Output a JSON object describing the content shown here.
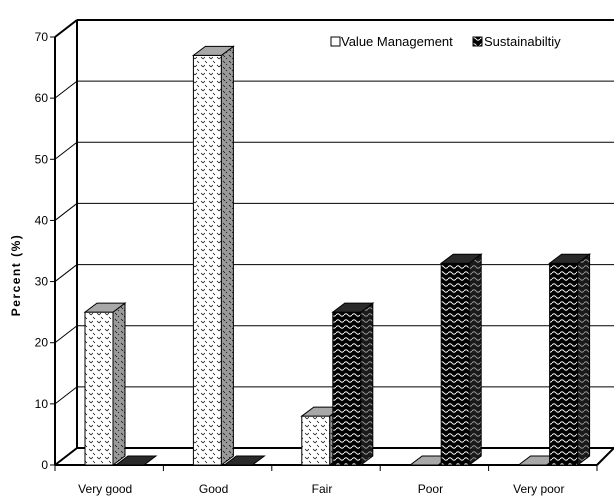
{
  "chart_data": {
    "type": "bar",
    "categories": [
      "Very good",
      "Good",
      "Fair",
      "Poor",
      "Very poor"
    ],
    "series": [
      {
        "name": "Value Management",
        "values": [
          25,
          67,
          8,
          0,
          0
        ]
      },
      {
        "name": "Sustainabiltiy",
        "values": [
          0,
          0,
          25,
          33,
          33
        ]
      }
    ],
    "ylabel": "Percent (%)",
    "ylim": [
      0,
      70
    ],
    "yticks": [
      0,
      10,
      20,
      30,
      40,
      50,
      60,
      70
    ],
    "grid": true,
    "legend_position": "top-right",
    "colors": {
      "frame": "#000000",
      "fill": "#ffffff",
      "pattern": "#000000"
    }
  }
}
